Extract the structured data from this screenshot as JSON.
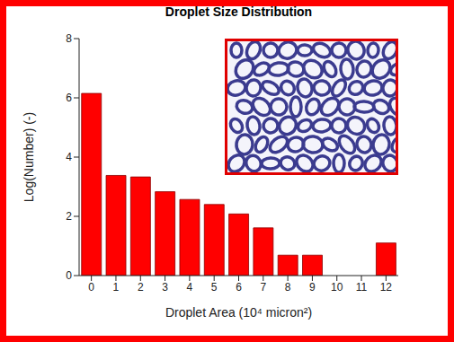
{
  "chart_data": {
    "type": "bar",
    "title": "Droplet Size Distribution",
    "x_label": "Droplet Area (10⁴ micron²)",
    "y_label": "Log(Number) (-)",
    "categories": [
      "0",
      "1",
      "2",
      "3",
      "4",
      "5",
      "6",
      "7",
      "8",
      "9",
      "10",
      "11",
      "12"
    ],
    "values": [
      6.15,
      3.38,
      3.33,
      2.83,
      2.57,
      2.4,
      2.08,
      1.61,
      0.69,
      0.69,
      0,
      0,
      1.1
    ],
    "color": "#ff0000",
    "ylim": [
      0,
      8
    ],
    "yticks": [
      0,
      2,
      4,
      6,
      8
    ],
    "grid": false
  }
}
